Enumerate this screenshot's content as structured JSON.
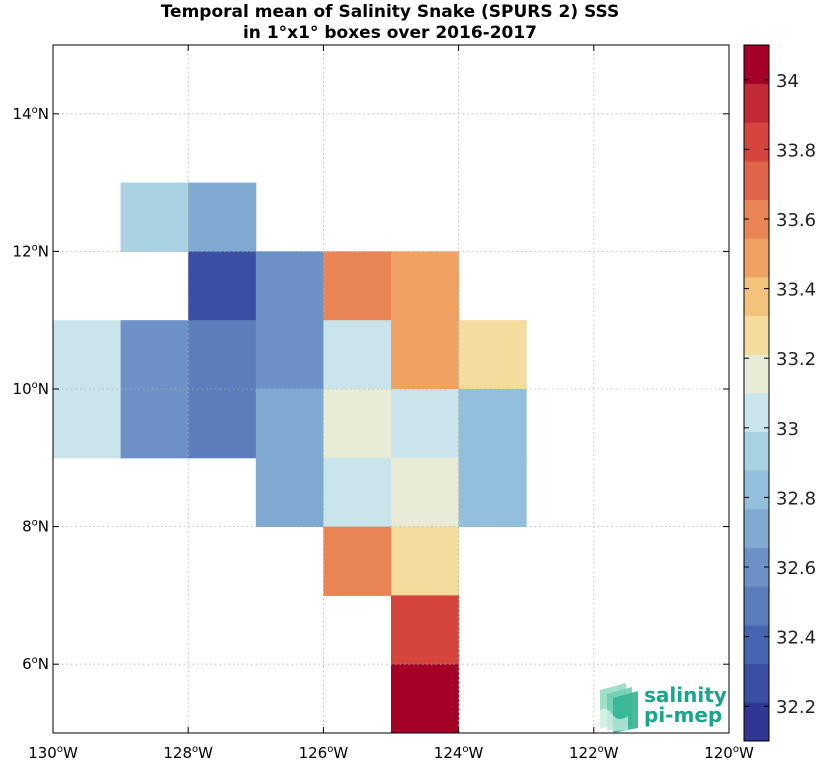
{
  "title": {
    "line1": "Temporal mean of Salinity Snake (SPURS 2) SSS",
    "line2": "in 1°x1° boxes over 2016-2017"
  },
  "chart_data": {
    "type": "heatmap",
    "xlim": [
      -130,
      -120
    ],
    "ylim": [
      5,
      15
    ],
    "x_ticks": [
      {
        "value": -130,
        "label": "130"
      },
      {
        "value": -128,
        "label": "128"
      },
      {
        "value": -126,
        "label": "126"
      },
      {
        "value": -124,
        "label": "124"
      },
      {
        "value": -122,
        "label": "122"
      },
      {
        "value": -120,
        "label": "120"
      }
    ],
    "x_tick_suffix": "W",
    "y_ticks": [
      {
        "value": 6,
        "label": "6"
      },
      {
        "value": 8,
        "label": "8"
      },
      {
        "value": 10,
        "label": "10"
      },
      {
        "value": 12,
        "label": "12"
      },
      {
        "value": 14,
        "label": "14"
      }
    ],
    "y_tick_suffix": "N",
    "degree_symbol": "o",
    "grid": true,
    "cells": [
      {
        "lon": -129,
        "lat": 12,
        "value": 32.95
      },
      {
        "lon": -128,
        "lat": 12,
        "value": 32.75
      },
      {
        "lon": -128,
        "lat": 11,
        "value": 32.3
      },
      {
        "lon": -127,
        "lat": 11,
        "value": 32.55
      },
      {
        "lon": -126,
        "lat": 11,
        "value": 33.65
      },
      {
        "lon": -125,
        "lat": 11,
        "value": 33.45
      },
      {
        "lon": -130,
        "lat": 10,
        "value": 33.05
      },
      {
        "lon": -129,
        "lat": 10,
        "value": 32.55
      },
      {
        "lon": -128,
        "lat": 10,
        "value": 32.45
      },
      {
        "lon": -127,
        "lat": 10,
        "value": 32.55
      },
      {
        "lon": -126,
        "lat": 10,
        "value": 33.05
      },
      {
        "lon": -125,
        "lat": 10,
        "value": 33.45
      },
      {
        "lon": -124,
        "lat": 10,
        "value": 33.25
      },
      {
        "lon": -130,
        "lat": 9,
        "value": 33.05
      },
      {
        "lon": -129,
        "lat": 9,
        "value": 32.55
      },
      {
        "lon": -128,
        "lat": 9,
        "value": 32.45
      },
      {
        "lon": -127,
        "lat": 9,
        "value": 32.75
      },
      {
        "lon": -126,
        "lat": 9,
        "value": 33.15
      },
      {
        "lon": -125,
        "lat": 9,
        "value": 33.05
      },
      {
        "lon": -124,
        "lat": 9,
        "value": 32.85
      },
      {
        "lon": -127,
        "lat": 8,
        "value": 32.75
      },
      {
        "lon": -126,
        "lat": 8,
        "value": 33.05
      },
      {
        "lon": -125,
        "lat": 8,
        "value": 33.15
      },
      {
        "lon": -124,
        "lat": 8,
        "value": 32.85
      },
      {
        "lon": -126,
        "lat": 7,
        "value": 33.65
      },
      {
        "lon": -125,
        "lat": 7,
        "value": 33.25
      },
      {
        "lon": -125,
        "lat": 6,
        "value": 33.85
      },
      {
        "lon": -125,
        "lat": 5,
        "value": 34.05
      }
    ],
    "colorbar": {
      "range": [
        32.1,
        34.1
      ],
      "ticks": [
        32.2,
        32.4,
        32.6,
        32.8,
        33,
        33.2,
        33.4,
        33.6,
        33.8,
        34
      ],
      "tick_labels": [
        "32.2",
        "32.4",
        "32.6",
        "32.8",
        "33",
        "33.2",
        "33.4",
        "33.6",
        "33.8",
        "34"
      ],
      "colors": [
        "#313695",
        "#3a4ea3",
        "#4466b0",
        "#5a7dbc",
        "#6b91c6",
        "#7fa9d0",
        "#92bfdb",
        "#a8d2e2",
        "#c9e4ea",
        "#e8ecd6",
        "#f3dc9e",
        "#f3c27c",
        "#f0a265",
        "#e98555",
        "#e0644a",
        "#d5443d",
        "#c22a36",
        "#a50026"
      ]
    }
  },
  "logo": {
    "line1": "salinity",
    "line2": "pi-mep"
  }
}
